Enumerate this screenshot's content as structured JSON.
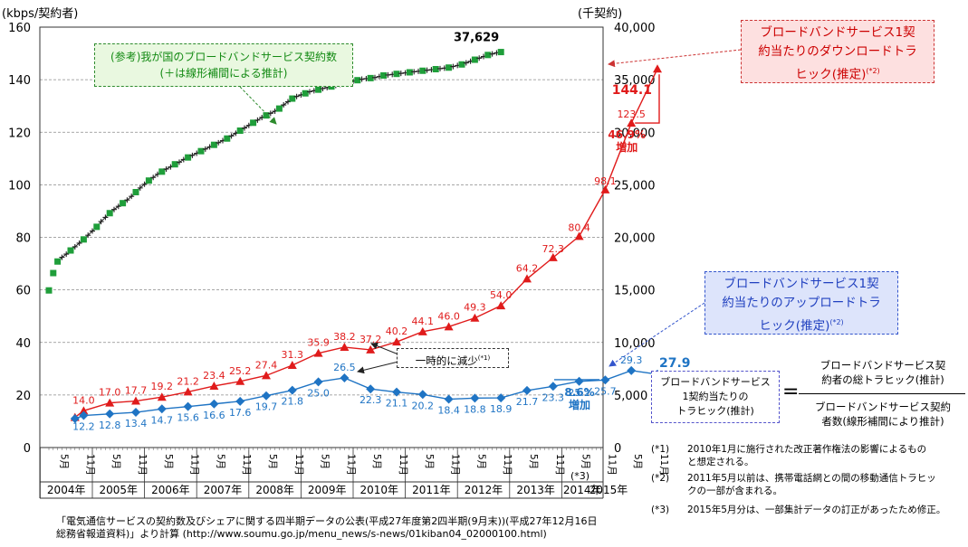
{
  "chart_data": {
    "type": "line",
    "left_axis_label": "(kbps/契約者)",
    "right_axis_label": "(千契約)",
    "left_ylim": [
      0,
      160
    ],
    "left_ticks": [
      "0",
      "20",
      "40",
      "60",
      "80",
      "100",
      "120",
      "140",
      "160"
    ],
    "right_ylim": [
      0,
      40000
    ],
    "right_ticks": [
      "0",
      "5,000",
      "10,000",
      "15,000",
      "20,000",
      "25,000",
      "30,000",
      "35,000",
      "40,000"
    ],
    "grid": true,
    "x_tick_labels": [
      {
        "month": "5月",
        "year": "2004"
      },
      {
        "month": "11月",
        "year": "2004"
      },
      {
        "month": "5月",
        "year": "2005"
      },
      {
        "month": "11月",
        "year": "2005"
      },
      {
        "month": "5月",
        "year": "2006"
      },
      {
        "month": "11月",
        "year": "2006"
      },
      {
        "month": "5月",
        "year": "2007"
      },
      {
        "month": "11月",
        "year": "2007"
      },
      {
        "month": "5月",
        "year": "2008"
      },
      {
        "month": "11月",
        "year": "2008"
      },
      {
        "month": "5月",
        "year": "2009"
      },
      {
        "month": "11月",
        "year": "2009"
      },
      {
        "month": "5月",
        "year": "2010"
      },
      {
        "month": "11月",
        "year": "2010"
      },
      {
        "month": "5月",
        "year": "2011"
      },
      {
        "month": "11月",
        "year": "2011"
      },
      {
        "month": "5月",
        "year": "2012"
      },
      {
        "month": "11月",
        "year": "2012"
      },
      {
        "month": "5月",
        "year": "2013"
      },
      {
        "month": "11月",
        "year": "2013"
      },
      {
        "month": "5月",
        "year": "2014"
      },
      {
        "month": "11月",
        "year": "2014"
      },
      {
        "month": "5月",
        "year": "2015"
      },
      {
        "month": "11月",
        "year": "2015"
      }
    ],
    "year_labels": [
      "2004年",
      "2005年",
      "2006年",
      "2007年",
      "2008年",
      "2009年",
      "2010年",
      "2011年",
      "2012年",
      "2013年",
      "2014年",
      "2015年"
    ],
    "series": [
      {
        "name": "ブロードバンドサービス1契約当たりのダウンロードトラヒック(推定)",
        "axis": "left",
        "color": "#e01b1b",
        "marker": "triangle",
        "x": [
          "2004-09",
          "2004-11",
          "2005-05",
          "2005-11",
          "2006-05",
          "2006-11",
          "2007-05",
          "2007-11",
          "2008-05",
          "2008-11",
          "2009-05",
          "2009-11",
          "2010-05",
          "2010-11",
          "2011-05",
          "2011-11",
          "2012-05",
          "2012-11",
          "2013-05",
          "2013-11",
          "2014-05",
          "2014-11",
          "2015-05",
          "2015-11"
        ],
        "values": [
          11.5,
          14.0,
          17.0,
          17.7,
          19.2,
          21.2,
          23.4,
          25.2,
          27.4,
          31.3,
          35.9,
          38.2,
          37.2,
          40.2,
          44.1,
          46.0,
          49.3,
          54.0,
          64.2,
          72.3,
          80.4,
          98.1,
          123.5,
          144.1
        ],
        "labels": [
          "",
          "14.0",
          "17.0",
          "17.7",
          "19.2",
          "21.2",
          "23.4",
          "25.2",
          "27.4",
          "31.3",
          "35.9",
          "38.2",
          "37.2",
          "40.2",
          "44.1",
          "46.0",
          "49.3",
          "54.0",
          "64.2",
          "72.3",
          "80.4",
          "98.1",
          "123.5",
          "144.1"
        ]
      },
      {
        "name": "ブロードバンドサービス1契約当たりのアップロードトラヒック(推定)",
        "axis": "left",
        "color": "#1f74c4",
        "marker": "diamond",
        "x": [
          "2004-09",
          "2004-11",
          "2005-05",
          "2005-11",
          "2006-05",
          "2006-11",
          "2007-05",
          "2007-11",
          "2008-05",
          "2008-11",
          "2009-05",
          "2009-11",
          "2010-05",
          "2010-11",
          "2011-05",
          "2011-11",
          "2012-05",
          "2012-11",
          "2013-05",
          "2013-11",
          "2014-05",
          "2014-11",
          "2015-05",
          "2015-11"
        ],
        "values": [
          11.0,
          12.2,
          12.8,
          13.4,
          14.7,
          15.6,
          16.6,
          17.6,
          19.7,
          21.8,
          25.0,
          26.5,
          22.3,
          21.1,
          20.2,
          18.4,
          18.8,
          18.9,
          21.7,
          23.3,
          25.2,
          25.7,
          29.3,
          27.9
        ],
        "labels": [
          "",
          "12.2",
          "12.8",
          "13.4",
          "14.7",
          "15.6",
          "16.6",
          "17.6",
          "19.7",
          "21.8",
          "25.0",
          "26.5",
          "22.3",
          "21.1",
          "20.2",
          "18.4",
          "18.8",
          "18.9",
          "21.7",
          "23.3",
          "25.2",
          "25.7",
          "29.3",
          "27.9"
        ]
      },
      {
        "name": "(参考)我が国のブロードバンドサービス契約数",
        "axis": "right",
        "color": "#1f9e3a",
        "marker": "square",
        "start": "2004-03",
        "values": [
          14950,
          16600,
          17700,
          18100,
          18400,
          18750,
          19100,
          19450,
          19800,
          20200,
          20600,
          21000,
          21500,
          21900,
          22300,
          22650,
          22950,
          23250,
          23550,
          23900,
          24300,
          24700,
          25050,
          25400,
          25700,
          26000,
          26250,
          26500,
          26700,
          26950,
          27150,
          27400,
          27600,
          27800,
          28000,
          28200,
          28400,
          28600,
          28800,
          29000,
          29200,
          29400,
          29650,
          29900,
          30150,
          30400,
          30650,
          30900,
          31150,
          31400,
          31600,
          31800,
          32000,
          32250,
          32600,
          32900,
          33200,
          33400,
          33550,
          33700,
          33850,
          33950,
          34050,
          34150,
          34250,
          34350,
          34450,
          34550,
          34650,
          34750,
          34850,
          34950,
          35050,
          35100,
          35150,
          35200,
          35300,
          35400,
          35450,
          35500,
          35550,
          35600,
          35650,
          35700,
          35750,
          35800,
          35850,
          35900,
          35950,
          36000,
          36050,
          36100,
          36150,
          36250,
          36350,
          36450,
          36600,
          36750,
          36900,
          37050,
          37200,
          37350,
          37450,
          37550,
          37629
        ]
      }
    ],
    "contract_end_label": "37,629",
    "down_increase": [
      "46.9%",
      "増加"
    ],
    "up_increase": [
      "8.6%",
      "増加"
    ],
    "down_last_label": "144.1",
    "up_last_label": "27.9"
  },
  "callouts": {
    "contract": [
      "(参考)我が国のブロードバンドサービス契約数",
      "(＋は線形補間による推計)"
    ],
    "download": [
      "ブロードバンドサービス1契",
      "約当たりのダウンロードトラ",
      "ヒック(推定)"
    ],
    "upload": [
      "ブロードバンドサービス1契",
      "約当たりのアップロードトラ",
      "ヒック(推定)"
    ],
    "footnote_mark": "(*2)",
    "temporary": "一時的に減少",
    "temporary_mark": "(*1)"
  },
  "definition": {
    "box": [
      "ブロードバンドサービス",
      "1契約当たりの",
      "トラヒック(推計)"
    ],
    "equals": "=",
    "numerator": [
      "ブロードバンドサービス契",
      "約者の総トラヒック(推計)"
    ],
    "denominator": [
      "ブロードバンドサービス契約",
      "者数(線形補間により推計)"
    ]
  },
  "notes": [
    {
      "key": "(*1)",
      "lines": [
        "2010年1月に施行された改正著作権法の影響によるもの",
        "と想定される。"
      ]
    },
    {
      "key": "(*2)",
      "lines": [
        "2011年5月以前は、携帯電話網との間の移動通信トラヒッ",
        "クの一部が含まれる。"
      ]
    },
    {
      "key": "(*3)",
      "lines": [
        "2015年5月分は、一部集計データの訂正があったため修正。"
      ]
    }
  ],
  "star3_mark": "(*3)",
  "source": [
    "「電気通信サービスの契約数及びシェアに関する四半期データの公表(平成27年度第2四半期(9月末))(平成27年12月16日",
    "総務省報道資料)」より計算 (http://www.soumu.go.jp/menu_news/s-news/01kiban04_02000100.html)"
  ]
}
